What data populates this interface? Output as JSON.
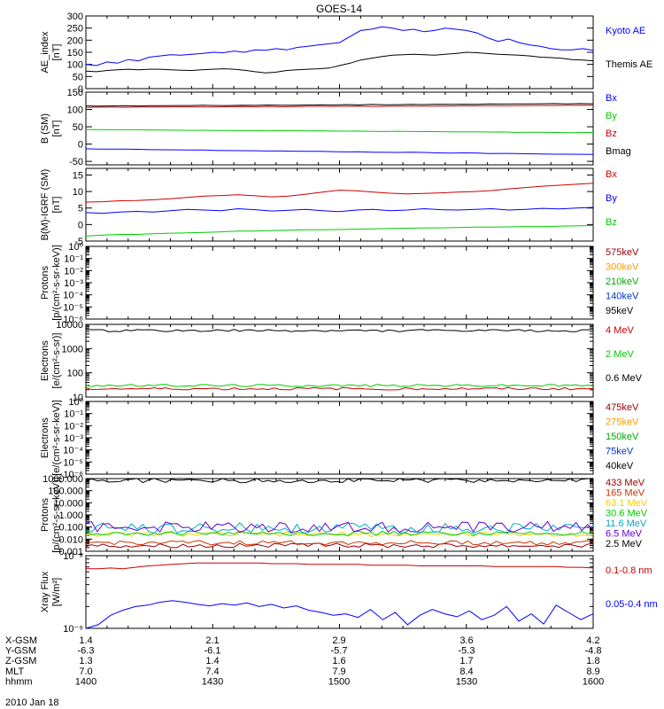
{
  "title": "GOES-14",
  "footer": {
    "rows": [
      {
        "label": "X-GSM",
        "values": [
          "1.4",
          "2.1",
          "2.9",
          "3.6",
          "4.2"
        ]
      },
      {
        "label": "Y-GSM",
        "values": [
          "-6.3",
          "-6.1",
          "-5.7",
          "-5.3",
          "-4.8"
        ]
      },
      {
        "label": "Z-GSM",
        "values": [
          "1.3",
          "1.4",
          "1.6",
          "1.7",
          "1.8"
        ]
      },
      {
        "label": "MLT",
        "values": [
          "7.0",
          "7.4",
          "7.9",
          "8.4",
          "8.9"
        ]
      },
      {
        "label": "hhmm",
        "values": [
          "1400",
          "1430",
          "1500",
          "1530",
          "1600"
        ]
      }
    ],
    "date": "2010 Jan 18"
  },
  "chart_data": [
    {
      "type": "line",
      "ylabel": [
        "AE_index",
        "[nT]"
      ],
      "ylim": [
        0,
        300
      ],
      "yscale": "linear",
      "yticks": [
        0,
        50,
        100,
        150,
        200,
        250,
        300
      ],
      "x_range": [
        "1400",
        "1600"
      ],
      "series": [
        {
          "name": "Kyoto AE",
          "color": "#0000ff",
          "values": [
            100,
            95,
            110,
            105,
            120,
            115,
            130,
            135,
            140,
            138,
            142,
            145,
            150,
            148,
            155,
            150,
            160,
            158,
            165,
            160,
            170,
            175,
            180,
            185,
            190,
            215,
            240,
            245,
            255,
            250,
            240,
            245,
            235,
            240,
            250,
            245,
            240,
            230,
            210,
            195,
            205,
            190,
            180,
            175,
            165,
            160,
            160,
            165,
            158
          ]
        },
        {
          "name": "Themis AE",
          "color": "#000000",
          "values": [
            72,
            70,
            75,
            78,
            80,
            78,
            80,
            80,
            78,
            76,
            75,
            78,
            80,
            82,
            80,
            76,
            70,
            65,
            68,
            75,
            78,
            80,
            82,
            85,
            95,
            105,
            118,
            125,
            132,
            138,
            140,
            142,
            140,
            138,
            142,
            145,
            150,
            148,
            145,
            142,
            140,
            138,
            135,
            130,
            128,
            125,
            120,
            118,
            115
          ]
        }
      ]
    },
    {
      "type": "line",
      "ylabel": [
        "B (SM)",
        "[nT]"
      ],
      "ylim": [
        -60,
        150
      ],
      "yscale": "linear",
      "yticks": [
        -50,
        0,
        50,
        100,
        150
      ],
      "series": [
        {
          "name": "Bx",
          "color": "#0000ff",
          "start": -14,
          "end": -30
        },
        {
          "name": "By",
          "color": "#00cc00",
          "start": 42,
          "end": 33
        },
        {
          "name": "Bz",
          "color": "#cc0000",
          "start": 106,
          "end": 112
        },
        {
          "name": "Bmag",
          "color": "#000000",
          "start": 110,
          "end": 117
        }
      ]
    },
    {
      "type": "line",
      "ylabel": [
        "B(M)-IGRF (SM)",
        "[nT]"
      ],
      "ylim": [
        -5,
        17
      ],
      "yscale": "linear",
      "yticks": [
        -5,
        0,
        5,
        10,
        15
      ],
      "series": [
        {
          "name": "Bx",
          "color": "#cc0000",
          "values": [
            6.8,
            6.9,
            7.2,
            7.3,
            7.5,
            7.8,
            8.2,
            8.6,
            8.8,
            9.0,
            8.7,
            8.4,
            8.6,
            9.2,
            9.8,
            10.4,
            10.2,
            9.8,
            9.5,
            9.3,
            9.4,
            9.6,
            9.8,
            10.0,
            10.3,
            10.8,
            11.2,
            11.6,
            11.9,
            12.2,
            12.5
          ]
        },
        {
          "name": "By",
          "color": "#0000ff",
          "values": [
            3.6,
            3.4,
            3.8,
            4.0,
            3.8,
            4.2,
            4.6,
            4.4,
            4.2,
            4.8,
            4.5,
            4.1,
            4.3,
            4.6,
            4.2,
            3.9,
            4.4,
            4.6,
            4.2,
            4.4,
            4.8,
            4.5,
            4.4,
            4.6,
            4.8,
            4.4,
            4.6,
            4.9,
            4.7,
            5.0,
            5.2
          ]
        },
        {
          "name": "Bz",
          "color": "#00cc00",
          "values": [
            -3.5,
            -3.2,
            -3.0,
            -3.0,
            -2.8,
            -2.6,
            -2.5,
            -2.4,
            -2.2,
            -2.0,
            -2.0,
            -1.8,
            -1.7,
            -1.6,
            -1.6,
            -1.5,
            -1.4,
            -1.3,
            -1.2,
            -1.1,
            -1.0,
            -1.0,
            -0.9,
            -0.8,
            -0.8,
            -0.7,
            -0.6,
            -0.6,
            -0.5,
            -0.4,
            -0.3
          ]
        }
      ]
    },
    {
      "type": "line",
      "ylabel": [
        "Protons",
        "[p/(cm²-s-sr-keV)]"
      ],
      "ylim": [
        1e-06,
        1
      ],
      "yscale": "log",
      "yticks": [
        1e-06,
        1e-05,
        0.0001,
        0.001,
        0.01,
        0.1,
        1
      ],
      "ytick_labels": [
        "10⁻⁶",
        "10⁻⁵",
        "10⁻⁴",
        "10⁻³",
        "10⁻²",
        "10⁻¹",
        "10⁰"
      ],
      "series": [
        {
          "name": "575keV",
          "color": "#990000",
          "values": []
        },
        {
          "name": "300keV",
          "color": "#ff9900",
          "values": []
        },
        {
          "name": "210keV",
          "color": "#00aa00",
          "values": []
        },
        {
          "name": "140keV",
          "color": "#0033cc",
          "values": []
        },
        {
          "name": "95keV",
          "color": "#000000",
          "values": []
        }
      ]
    },
    {
      "type": "line",
      "ylabel": [
        "Electrons",
        "[e/(cm²-s-sr)]"
      ],
      "ylim": [
        10,
        10000
      ],
      "yscale": "log",
      "yticks": [
        10,
        100,
        1000,
        10000
      ],
      "ytick_labels": [
        "10",
        "100",
        "1000",
        "10000"
      ],
      "series": [
        {
          "name": "4 MeV",
          "color": "#cc0000",
          "level": 22
        },
        {
          "name": "2 MeV",
          "color": "#00cc00",
          "level": 30
        },
        {
          "name": "0.6 MeV",
          "color": "#000000",
          "level": 5500
        }
      ]
    },
    {
      "type": "line",
      "ylabel": [
        "Electrons",
        "[e/(cm²-s-sr-keV)]"
      ],
      "ylim": [
        1e-06,
        1
      ],
      "yscale": "log",
      "yticks": [
        1e-06,
        1e-05,
        0.0001,
        0.001,
        0.01,
        0.1,
        1
      ],
      "ytick_labels": [
        "10⁻⁶",
        "10⁻⁵",
        "10⁻⁴",
        "10⁻³",
        "10⁻²",
        "10⁻¹",
        "10⁰"
      ],
      "series": [
        {
          "name": "475keV",
          "color": "#990000",
          "values": []
        },
        {
          "name": "275keV",
          "color": "#ff9900",
          "values": []
        },
        {
          "name": "150keV",
          "color": "#00aa00",
          "values": []
        },
        {
          "name": "75keV",
          "color": "#0033cc",
          "values": []
        },
        {
          "name": "40keV",
          "color": "#000000",
          "values": []
        }
      ]
    },
    {
      "type": "line",
      "ylabel": [
        "Protons",
        "[p/(cm²-s-sr-keV)]"
      ],
      "ylim": [
        0.001,
        1000
      ],
      "yscale": "log",
      "yticks": [
        0.001,
        0.01,
        0.1,
        1,
        10,
        100,
        1000
      ],
      "ytick_labels": [
        "0.001",
        "0.010",
        "0.100",
        "1.000",
        "10.000",
        "100.000",
        "1000.000"
      ],
      "series": [
        {
          "name": "433 MeV",
          "color": "#990000",
          "level": 0.003
        },
        {
          "name": "165 MeV",
          "color": "#cc3300",
          "level": 0.005
        },
        {
          "name": "63.1 MeV",
          "color": "#ffcc00",
          "level": 0.025
        },
        {
          "name": "30.6 MeV",
          "color": "#00cc00",
          "level": 0.03
        },
        {
          "name": "11.6 MeV",
          "color": "#00aacc",
          "level": 0.08
        },
        {
          "name": "6.5 MeV",
          "color": "#6600cc",
          "level": 0.1
        },
        {
          "name": "2.5 MeV",
          "color": "#000000",
          "level": 700
        }
      ]
    },
    {
      "type": "line",
      "ylabel": [
        "Xray Flux",
        "[W/m²]"
      ],
      "ylim": [
        1e-09,
        1e-08
      ],
      "yscale": "log",
      "yticks": [
        1e-09,
        1e-08
      ],
      "ytick_labels": [
        "10⁻⁹",
        "10⁻⁸"
      ],
      "series": [
        {
          "name": "0.1-0.8 nm",
          "color": "#cc0000",
          "values": [
            0.82,
            0.82,
            0.83,
            0.82,
            0.84,
            0.86,
            0.87,
            0.88,
            0.89,
            0.9,
            0.9,
            0.9,
            0.9,
            0.9,
            0.9,
            0.89,
            0.89,
            0.89,
            0.88,
            0.88,
            0.88,
            0.88,
            0.88,
            0.87,
            0.87,
            0.87,
            0.87,
            0.86,
            0.86,
            0.86,
            0.86,
            0.86,
            0.86,
            0.85,
            0.85,
            0.85,
            0.85,
            0.85,
            0.85,
            0.84,
            0.84,
            0.83
          ]
        },
        {
          "name": "0.05-0.4 nm",
          "color": "#0000ff",
          "values": [
            0.0,
            0.05,
            0.18,
            0.25,
            0.3,
            0.32,
            0.36,
            0.38,
            0.36,
            0.33,
            0.31,
            0.34,
            0.32,
            0.35,
            0.3,
            0.33,
            0.28,
            0.31,
            0.25,
            0.22,
            0.18,
            0.2,
            0.15,
            0.26,
            0.12,
            0.22,
            0.05,
            0.18,
            0.26,
            0.2,
            0.16,
            0.24,
            0.12,
            0.18,
            0.3,
            0.1,
            0.2,
            0.06,
            0.32,
            0.22,
            0.12,
            0.2
          ]
        }
      ]
    }
  ]
}
